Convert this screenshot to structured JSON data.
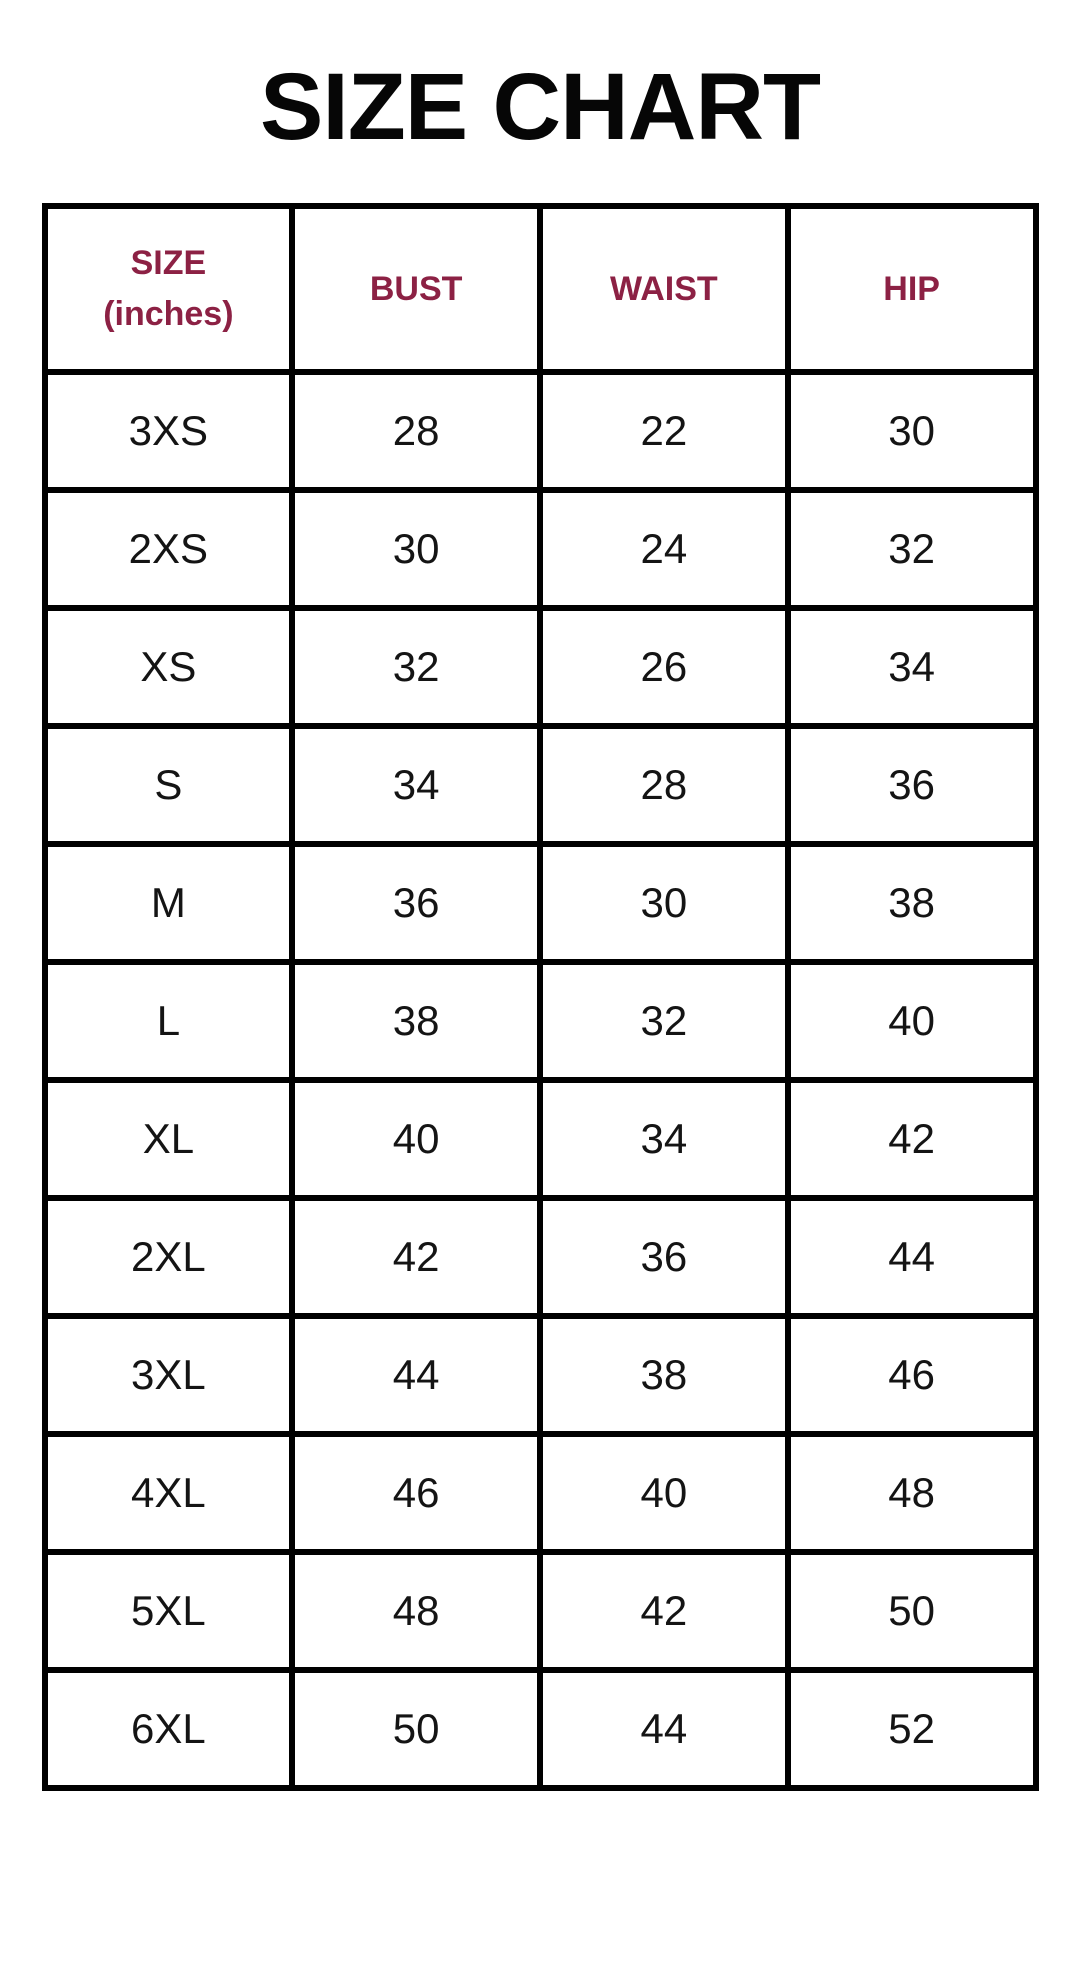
{
  "colors": {
    "background": "#FFFFFF",
    "title_text": "#060606",
    "header_text": "#8C2144",
    "body_text": "#141414",
    "grid_border": "#000000"
  },
  "header_display": [
    {
      "line1": "SIZE",
      "line2": "(inches)"
    },
    {
      "line1": "BUST"
    },
    {
      "line1": "WAIST"
    },
    {
      "line1": "HIP"
    }
  ],
  "chart_data": {
    "type": "table",
    "title": "SIZE CHART",
    "columns": [
      "SIZE (inches)",
      "BUST",
      "WAIST",
      "HIP"
    ],
    "rows": [
      [
        "3XS",
        28,
        22,
        30
      ],
      [
        "2XS",
        30,
        24,
        32
      ],
      [
        "XS",
        32,
        26,
        34
      ],
      [
        "S",
        34,
        28,
        36
      ],
      [
        "M",
        36,
        30,
        38
      ],
      [
        "L",
        38,
        32,
        40
      ],
      [
        "XL",
        40,
        34,
        42
      ],
      [
        "2XL",
        42,
        36,
        44
      ],
      [
        "3XL",
        44,
        38,
        46
      ],
      [
        "4XL",
        46,
        40,
        48
      ],
      [
        "5XL",
        48,
        42,
        50
      ],
      [
        "6XL",
        50,
        44,
        52
      ]
    ],
    "units": "inches",
    "layout": "header row maroon, 12 data rows, equal-width columns, black grid"
  }
}
